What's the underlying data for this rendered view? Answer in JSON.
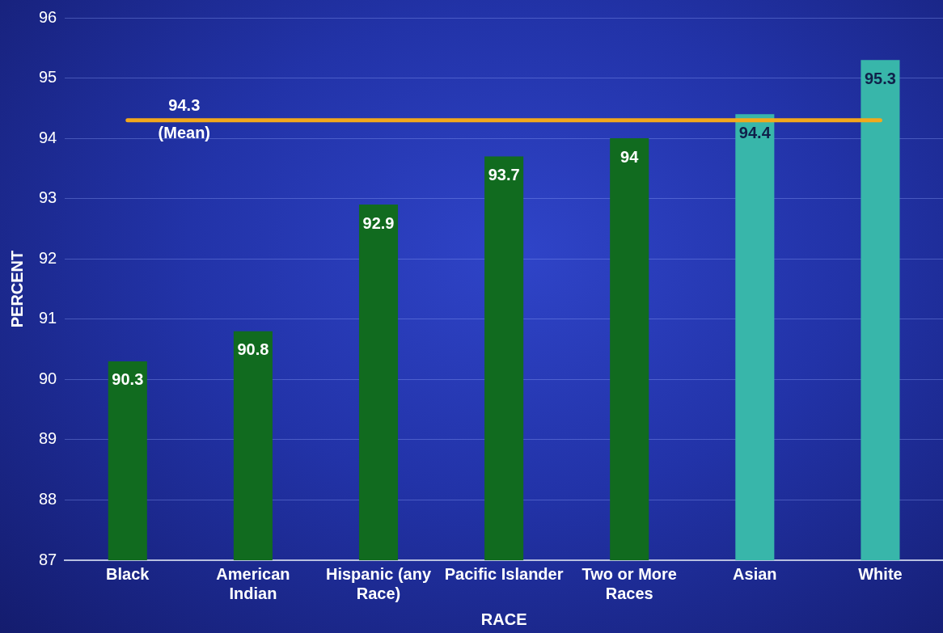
{
  "chart_data": {
    "type": "bar",
    "xlabel": "RACE",
    "ylabel": "PERCENT",
    "categories": [
      "Black",
      "American Indian",
      "Hispanic (any Race)",
      "Pacific Islander",
      "Two or More Races",
      "Asian",
      "White"
    ],
    "values": [
      90.3,
      90.8,
      92.9,
      93.7,
      94,
      94.4,
      95.3
    ],
    "colors": [
      "#116b1f",
      "#116b1f",
      "#116b1f",
      "#116b1f",
      "#116b1f",
      "#38b6aa",
      "#38b6aa"
    ],
    "ylim": [
      87,
      96
    ],
    "yticks": [
      87,
      88,
      89,
      90,
      91,
      92,
      93,
      94,
      95,
      96
    ],
    "grid": "y",
    "legend": false,
    "data_labels": true,
    "ref_lines": [
      {
        "axis": "y",
        "value": 94.3,
        "label": "94.3 (Mean)",
        "color": "#f3a81c"
      }
    ]
  }
}
